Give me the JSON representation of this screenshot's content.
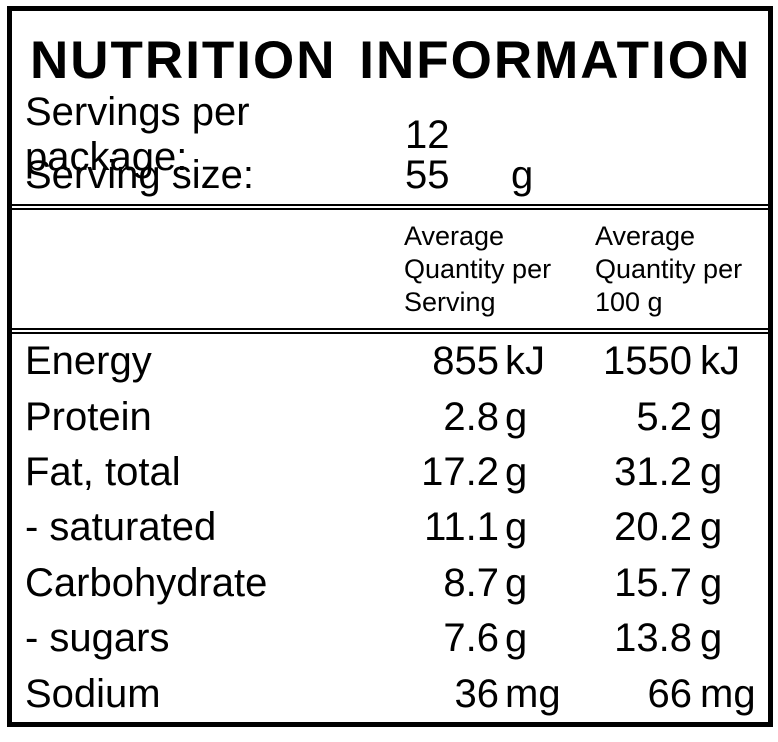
{
  "label": {
    "title": "NUTRITION INFORMATION",
    "servings_per_package": {
      "label": "Servings per package:",
      "value": "12"
    },
    "serving_size": {
      "label": "Serving size:",
      "value": "55",
      "unit": "g"
    },
    "columns": {
      "per_serving": "Average Quantity per Serving",
      "per_100g": "Average Quantity per 100 g"
    },
    "rows": [
      {
        "label": "Energy",
        "per_serving": "855",
        "per_serving_unit": "kJ",
        "per_100g": "1550",
        "per_100g_unit": "kJ"
      },
      {
        "label": "Protein",
        "per_serving": "2.8",
        "per_serving_unit": "g",
        "per_100g": "5.2",
        "per_100g_unit": "g"
      },
      {
        "label": "Fat, total",
        "per_serving": "17.2",
        "per_serving_unit": "g",
        "per_100g": "31.2",
        "per_100g_unit": "g"
      },
      {
        "label": "- saturated",
        "per_serving": "11.1",
        "per_serving_unit": "g",
        "per_100g": "20.2",
        "per_100g_unit": "g"
      },
      {
        "label": "Carbohydrate",
        "per_serving": "8.7",
        "per_serving_unit": "g",
        "per_100g": "15.7",
        "per_100g_unit": "g"
      },
      {
        "label": "- sugars",
        "per_serving": "7.6",
        "per_serving_unit": "g",
        "per_100g": "13.8",
        "per_100g_unit": "g"
      },
      {
        "label": "Sodium",
        "per_serving": "36",
        "per_serving_unit": "mg",
        "per_100g": "66",
        "per_100g_unit": "mg"
      }
    ],
    "colors": {
      "text": "#000000",
      "background": "#ffffff",
      "border": "#000000"
    }
  }
}
